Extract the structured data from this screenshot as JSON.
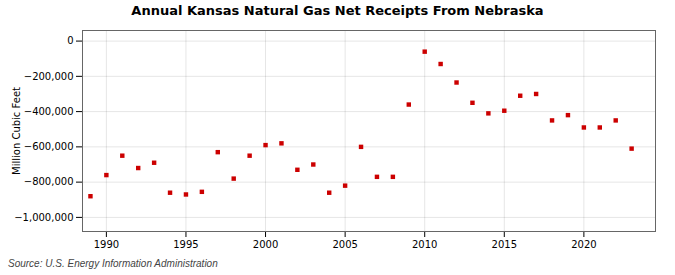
{
  "chart_data": {
    "type": "scatter",
    "title": "Annual Kansas Natural Gas Net Receipts From Nebraska",
    "ylabel": "Million Cubic Feet",
    "source": "Source: U.S. Energy Information Administration",
    "color": "#cc0000",
    "marker": "square",
    "grid": true,
    "xlim": [
      1988.5,
      2024.5
    ],
    "ylim": [
      -1080000,
      60000
    ],
    "xticks": [
      1990,
      1995,
      2000,
      2005,
      2010,
      2015,
      2020
    ],
    "yticks": [
      0,
      {
        "value": -200000,
        "label": "−200,000"
      },
      {
        "value": -400000,
        "label": "−400,000"
      },
      {
        "value": -600000,
        "label": "−600,000"
      },
      {
        "value": -800000,
        "label": "−800,000"
      },
      {
        "value": -1000000,
        "label": "−1,000,000"
      }
    ],
    "x": [
      1989,
      1990,
      1991,
      1992,
      1993,
      1994,
      1995,
      1996,
      1997,
      1998,
      1999,
      2000,
      2001,
      2002,
      2003,
      2004,
      2005,
      2006,
      2007,
      2008,
      2009,
      2010,
      2011,
      2012,
      2013,
      2014,
      2015,
      2016,
      2017,
      2018,
      2019,
      2020,
      2021,
      2022,
      2023
    ],
    "values": [
      -880000,
      -760000,
      -650000,
      -720000,
      -690000,
      -860000,
      -870000,
      -855000,
      -630000,
      -780000,
      -650000,
      -590000,
      -580000,
      -730000,
      -700000,
      -860000,
      -820000,
      -600000,
      -770000,
      -770000,
      -360000,
      -60000,
      -130000,
      -235000,
      -350000,
      -410000,
      -395000,
      -310000,
      -300000,
      -450000,
      -420000,
      -490000,
      -490000,
      -450000,
      -610000
    ]
  }
}
